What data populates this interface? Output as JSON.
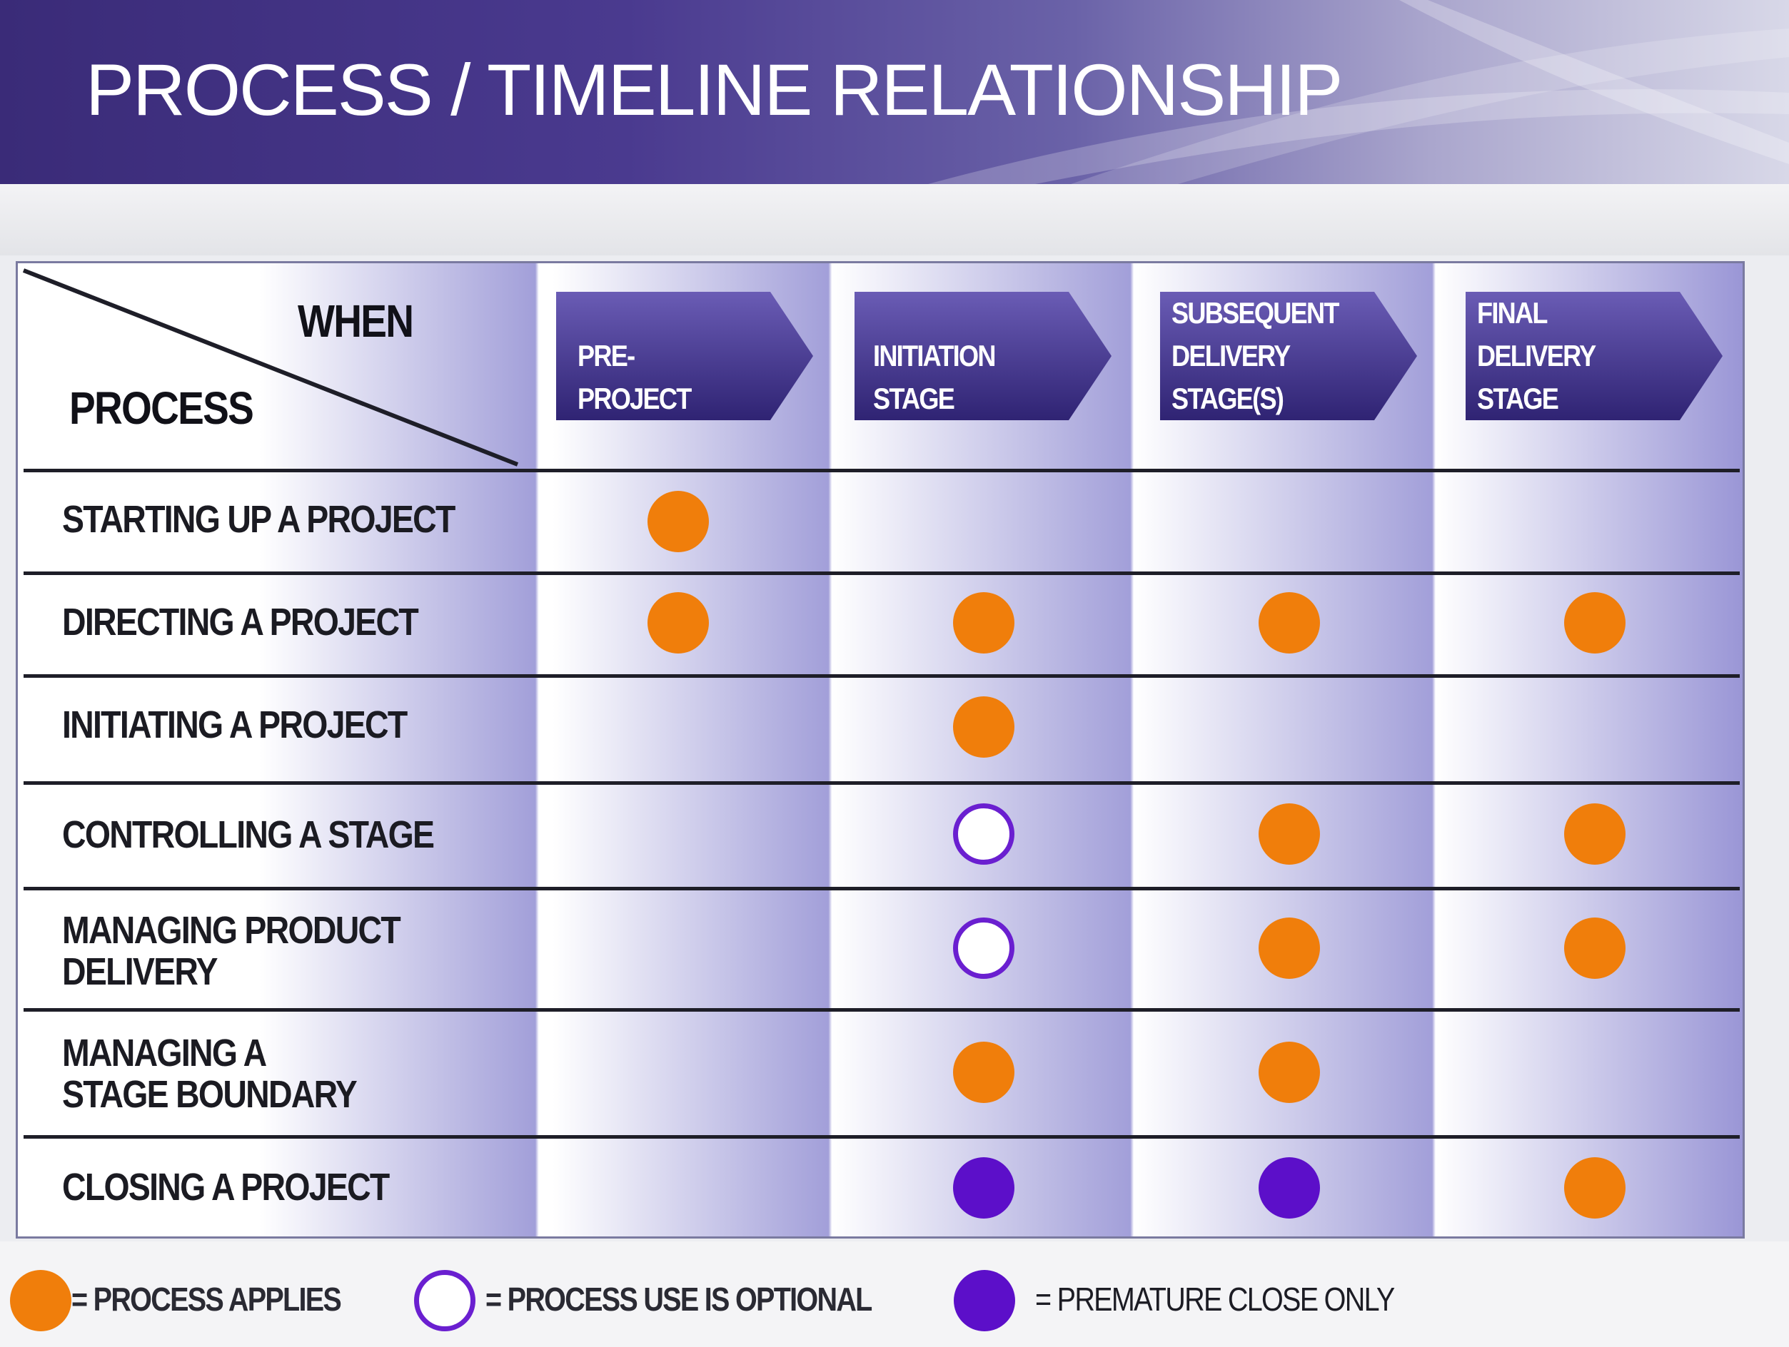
{
  "title": "PROCESS / TIMELINE RELATIONSHIP",
  "corner": {
    "when": "WHEN",
    "process": "PROCESS"
  },
  "stages": [
    {
      "label": "PRE-PROJECT"
    },
    {
      "label": "INITIATION STAGE"
    },
    {
      "label": "SUBSEQUENT\nDELIVERY\nSTAGE(S)"
    },
    {
      "label": "FINAL\nDELIVERY\nSTAGE"
    }
  ],
  "processes": [
    {
      "label": "STARTING UP A PROJECT",
      "marks": [
        "applies",
        "",
        "",
        ""
      ]
    },
    {
      "label": "DIRECTING A PROJECT",
      "marks": [
        "applies",
        "applies",
        "applies",
        "applies"
      ]
    },
    {
      "label": "INITIATING A PROJECT",
      "marks": [
        "",
        "applies",
        "",
        ""
      ]
    },
    {
      "label": "CONTROLLING A STAGE",
      "marks": [
        "",
        "optional",
        "applies",
        "applies"
      ]
    },
    {
      "label": "MANAGING PRODUCT\nDELIVERY",
      "marks": [
        "",
        "optional",
        "applies",
        "applies"
      ]
    },
    {
      "label": "MANAGING A\nSTAGE BOUNDARY",
      "marks": [
        "",
        "applies",
        "applies",
        ""
      ]
    },
    {
      "label": "CLOSING A PROJECT",
      "marks": [
        "",
        "premature",
        "premature",
        "applies"
      ]
    }
  ],
  "legend": {
    "applies": "= PROCESS APPLIES",
    "optional": "= PROCESS USE IS OPTIONAL",
    "premature": "= PREMATURE CLOSE ONLY"
  },
  "colors": {
    "applies": "#f07e0b",
    "optional_ring": "#6a1fd0",
    "premature": "#5c0fc9",
    "arrow_dark": "#2f2373",
    "arrow_light": "#6a5cb5"
  }
}
